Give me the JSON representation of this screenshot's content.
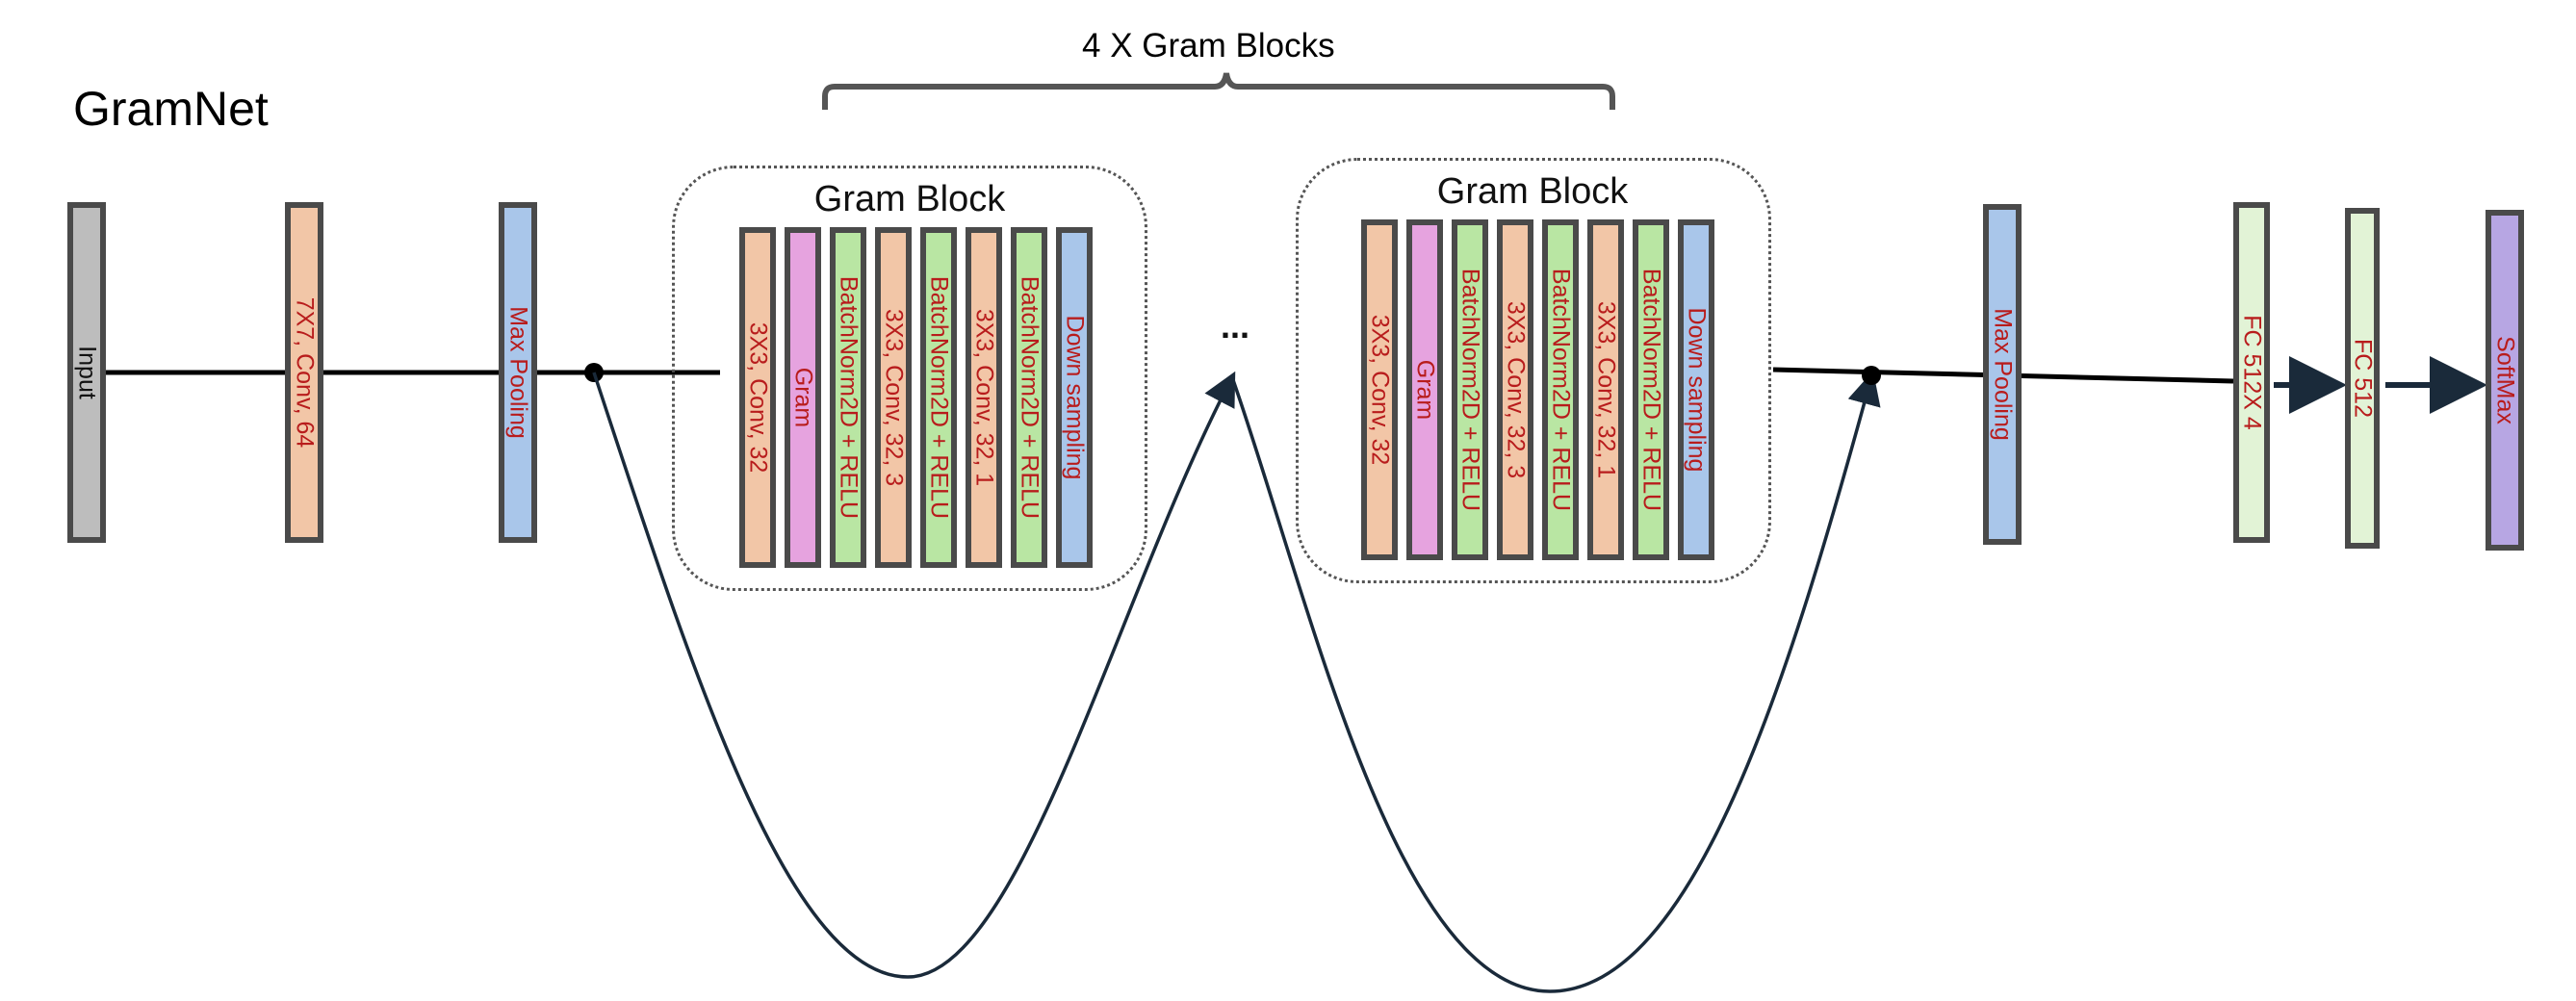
{
  "diagram": {
    "title": "GramNet",
    "bracket_label": "4 X Gram Blocks",
    "ellipsis": "...",
    "colors": {
      "input": "#bdbdbd",
      "conv": "#f2c6a7",
      "pool": "#a9c6ea",
      "gram": "#e6a3df",
      "bn": "#b9e6a3",
      "fc": "#e2f3d6",
      "softmax": "#b7a6e3",
      "border": "#4a4a4a",
      "text_red": "#b81c1c"
    },
    "main_layers": [
      {
        "label": "Input",
        "kind": "input"
      },
      {
        "label": "7X7, Conv, 64",
        "kind": "conv"
      },
      {
        "label": "Max Pooling",
        "kind": "pool"
      }
    ],
    "gram_blocks": [
      {
        "title": "Gram Block",
        "layers": [
          {
            "label": "3X3, Conv, 32",
            "kind": "conv"
          },
          {
            "label": "Gram",
            "kind": "gram"
          },
          {
            "label": "BatchNorm2D + RELU",
            "kind": "bn"
          },
          {
            "label": "3X3, Conv, 32, 3",
            "kind": "conv"
          },
          {
            "label": "BatchNorm2D + RELU",
            "kind": "bn"
          },
          {
            "label": "3X3, Conv, 32, 1",
            "kind": "conv"
          },
          {
            "label": "BatchNorm2D + RELU",
            "kind": "bn"
          },
          {
            "label": "Down sampling",
            "kind": "pool"
          }
        ]
      },
      {
        "title": "Gram Block",
        "layers": [
          {
            "label": "3X3, Conv, 32",
            "kind": "conv"
          },
          {
            "label": "Gram",
            "kind": "gram"
          },
          {
            "label": "BatchNorm2D + RELU",
            "kind": "bn"
          },
          {
            "label": "3X3, Conv, 32, 3",
            "kind": "conv"
          },
          {
            "label": "BatchNorm2D + RELU",
            "kind": "bn"
          },
          {
            "label": "3X3, Conv, 32, 1",
            "kind": "conv"
          },
          {
            "label": "BatchNorm2D + RELU",
            "kind": "bn"
          },
          {
            "label": "Down sampling",
            "kind": "pool"
          }
        ]
      }
    ],
    "tail_layers": [
      {
        "label": "Max Pooling",
        "kind": "pool"
      },
      {
        "label": "FC 512X 4",
        "kind": "fc"
      },
      {
        "label": "FC 512",
        "kind": "fc"
      },
      {
        "label": "SoftMax",
        "kind": "softmax"
      }
    ]
  }
}
